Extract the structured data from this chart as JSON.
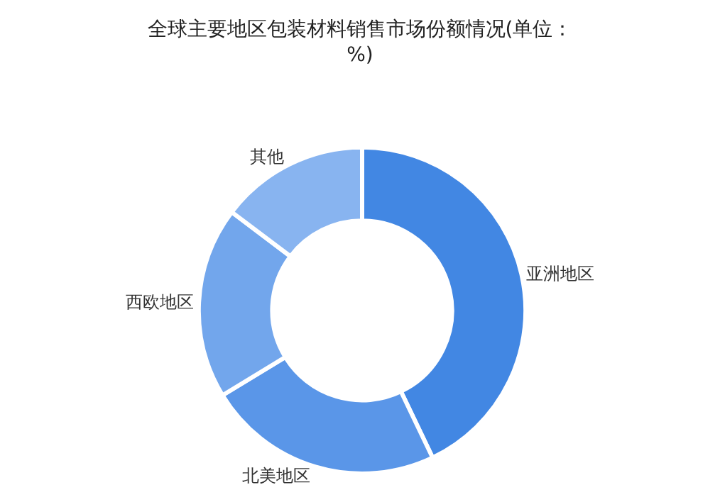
{
  "chart_data": {
    "type": "donut",
    "title": "全球主要地区包装材料销售市场份额情况(单位：%)",
    "categories": [
      "亚洲地区",
      "北美地区",
      "西欧地区",
      "其他"
    ],
    "values": [
      42.9,
      23.4,
      19.0,
      14.7
    ],
    "colors": [
      "#4287e3",
      "#5a96e8",
      "#72a6ec",
      "#88b4f0"
    ],
    "legend": false
  }
}
